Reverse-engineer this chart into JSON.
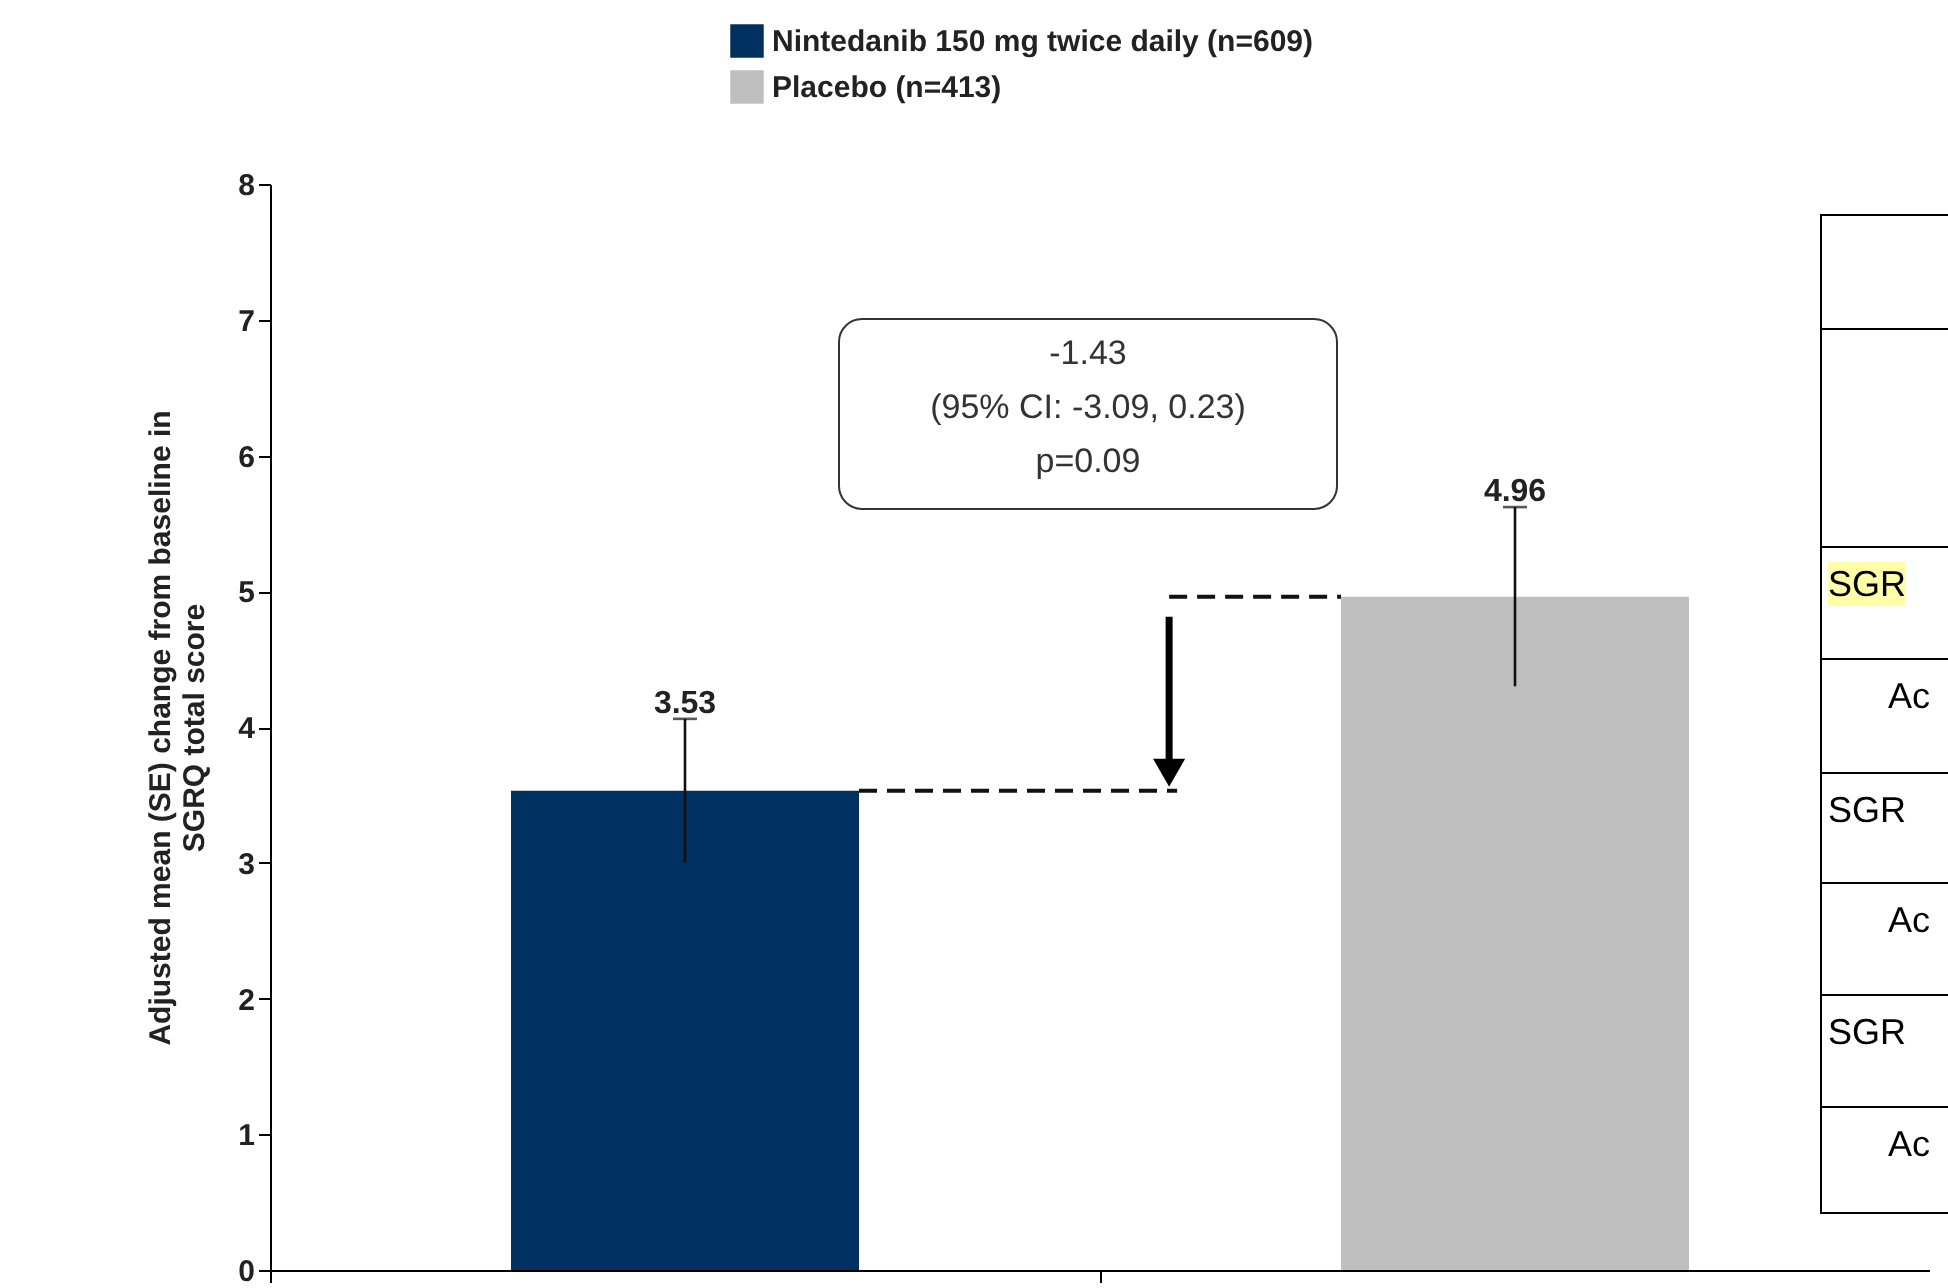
{
  "chart_data": {
    "type": "bar",
    "ylabel": "Adjusted mean (SE) change from baseline in SGRQ total score",
    "categories": [
      null,
      null
    ],
    "series": [
      {
        "name": "Nintedanib 150 mg twice daily (n=609)",
        "color": "#00305f",
        "values": [
          3.53,
          null
        ],
        "errors": [
          0.53,
          null
        ]
      },
      {
        "name": "Placebo (n=413)",
        "color": "#bfbfbf",
        "values": [
          null,
          4.96
        ],
        "errors": [
          null,
          0.66
        ]
      }
    ],
    "ylim": [
      0,
      8
    ],
    "yticks": [
      0,
      1,
      2,
      3,
      4,
      5,
      6,
      7,
      8
    ],
    "grid": false,
    "legend": "top",
    "data_labels": true,
    "annotations": [
      "-1.43",
      "(95% CI: -3.09, 0.23)",
      "p=0.09",
      "SGR",
      "Ac",
      "SGR",
      "Ac",
      "SGR",
      "Ac"
    ]
  }
}
